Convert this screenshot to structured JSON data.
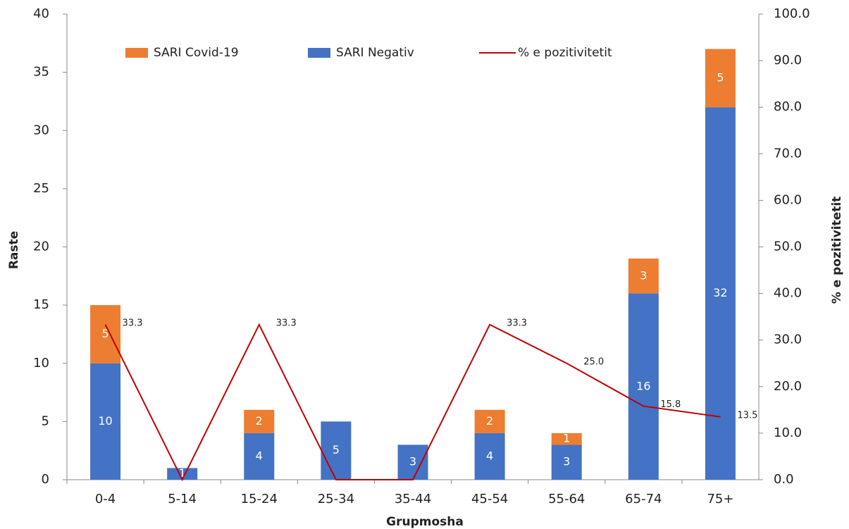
{
  "chart_data": {
    "type": "bar-line",
    "x_label": "Grupmosha",
    "y_label": "Raste",
    "y2_label": "% e pozitivitetit",
    "categories": [
      "0-4",
      "5-14",
      "15-24",
      "25-34",
      "35-44",
      "45-54",
      "55-64",
      "65-74",
      "75+"
    ],
    "series": [
      {
        "name": "SARI Covid-19",
        "color": "#ed7d31",
        "stack": "top",
        "values": [
          5,
          0,
          2,
          0,
          0,
          2,
          1,
          3,
          5
        ]
      },
      {
        "name": "SARI Negativ",
        "color": "#4472c4",
        "stack": "bottom",
        "values": [
          10,
          1,
          4,
          5,
          3,
          4,
          3,
          16,
          32
        ]
      },
      {
        "name": "% e pozitivitetit",
        "color": "#c00000",
        "type": "line",
        "axis": "y2",
        "values": [
          33.3,
          0,
          33.3,
          0,
          0,
          33.3,
          25.0,
          15.8,
          13.5
        ],
        "value_labels": [
          "33.3",
          null,
          "33.3",
          null,
          null,
          "33.3",
          "25.0",
          "15.8",
          "13.5"
        ]
      }
    ],
    "ylim": [
      0,
      40
    ],
    "yticks": [
      0,
      5,
      10,
      15,
      20,
      25,
      30,
      35,
      40
    ],
    "y2lim": [
      0,
      100
    ],
    "y2ticks": [
      {
        "value": 0,
        "label": "0.0"
      },
      {
        "value": 10,
        "label": "10.0"
      },
      {
        "value": 20,
        "label": "20.0"
      },
      {
        "value": 30,
        "label": "30.0"
      },
      {
        "value": 40,
        "label": "40.0"
      },
      {
        "value": 50,
        "label": "50.0"
      },
      {
        "value": 60,
        "label": "60.0"
      },
      {
        "value": 70,
        "label": "70.0"
      },
      {
        "value": 80,
        "label": "80.0"
      },
      {
        "value": 90,
        "label": "90.0"
      },
      {
        "value": 100,
        "label": "100.0"
      }
    ],
    "legend": "top",
    "grid": false
  }
}
